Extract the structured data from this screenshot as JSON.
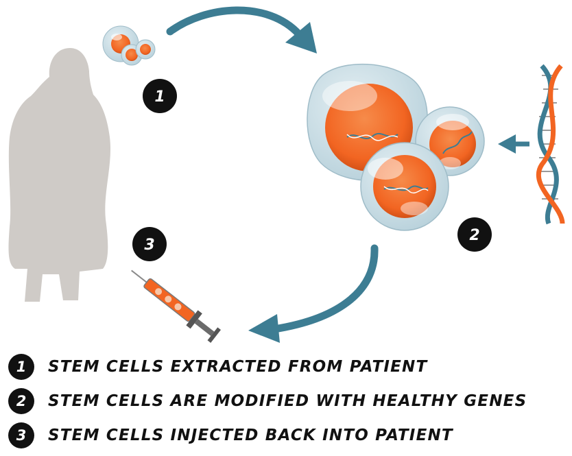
{
  "steps": [
    {
      "number": "1",
      "text": "STEM CELLS EXTRACTED FROM PATIENT"
    },
    {
      "number": "2",
      "text": "STEM CELLS ARE MODIFIED WITH HEALTHY GENES"
    },
    {
      "number": "3",
      "text": "STEM CELLS INJECTED BACK INTO PATIENT"
    }
  ],
  "colors": {
    "arrow": "#3d7d93",
    "cell_orange": "#f26522",
    "cell_shell": "#c9dde5",
    "silhouette": "#cfcbc7",
    "badge": "#111111"
  },
  "icons": [
    "patient-silhouette-icon",
    "stem-cells-icon",
    "dna-helix-icon",
    "syringe-icon",
    "curved-arrow-icon"
  ]
}
